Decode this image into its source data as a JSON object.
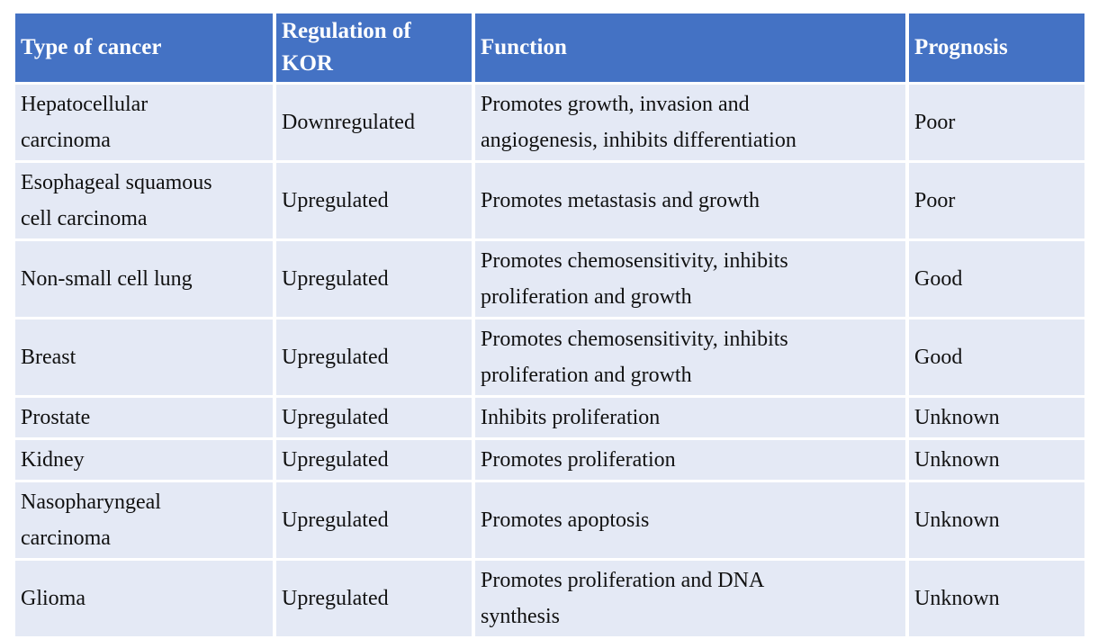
{
  "colors": {
    "header_bg": "#4472C4",
    "header_text": "#FFFFFF",
    "row_bg": "#E4E9F5",
    "gap": "#FFFFFF",
    "body_text": "#111111"
  },
  "table": {
    "columns": [
      {
        "key": "type",
        "label": "Type of cancer"
      },
      {
        "key": "regulation",
        "label": "Regulation of\nKOR"
      },
      {
        "key": "function",
        "label": "Function"
      },
      {
        "key": "prognosis",
        "label": "Prognosis"
      }
    ],
    "rows": [
      {
        "type": "Hepatocellular\ncarcinoma",
        "regulation": "Downregulated",
        "function": "Promotes growth, invasion and\nangiogenesis, inhibits differentiation",
        "prognosis": "Poor"
      },
      {
        "type": "Esophageal squamous\ncell carcinoma",
        "regulation": "Upregulated",
        "function": "Promotes metastasis and growth",
        "prognosis": "Poor"
      },
      {
        "type": "Non-small cell lung",
        "regulation": "Upregulated",
        "function": "Promotes chemosensitivity, inhibits\nproliferation and growth",
        "prognosis": "Good"
      },
      {
        "type": "Breast",
        "regulation": "Upregulated",
        "function": "Promotes chemosensitivity, inhibits\nproliferation and growth",
        "prognosis": "Good"
      },
      {
        "type": "Prostate",
        "regulation": "Upregulated",
        "function": "Inhibits proliferation",
        "prognosis": "Unknown"
      },
      {
        "type": "Kidney",
        "regulation": "Upregulated",
        "function": "Promotes proliferation",
        "prognosis": "Unknown"
      },
      {
        "type": "Nasopharyngeal\ncarcinoma",
        "regulation": "Upregulated",
        "function": "Promotes apoptosis",
        "prognosis": "Unknown"
      },
      {
        "type": "Glioma",
        "regulation": "Upregulated",
        "function": "Promotes proliferation and DNA\nsynthesis",
        "prognosis": "Unknown"
      }
    ]
  }
}
